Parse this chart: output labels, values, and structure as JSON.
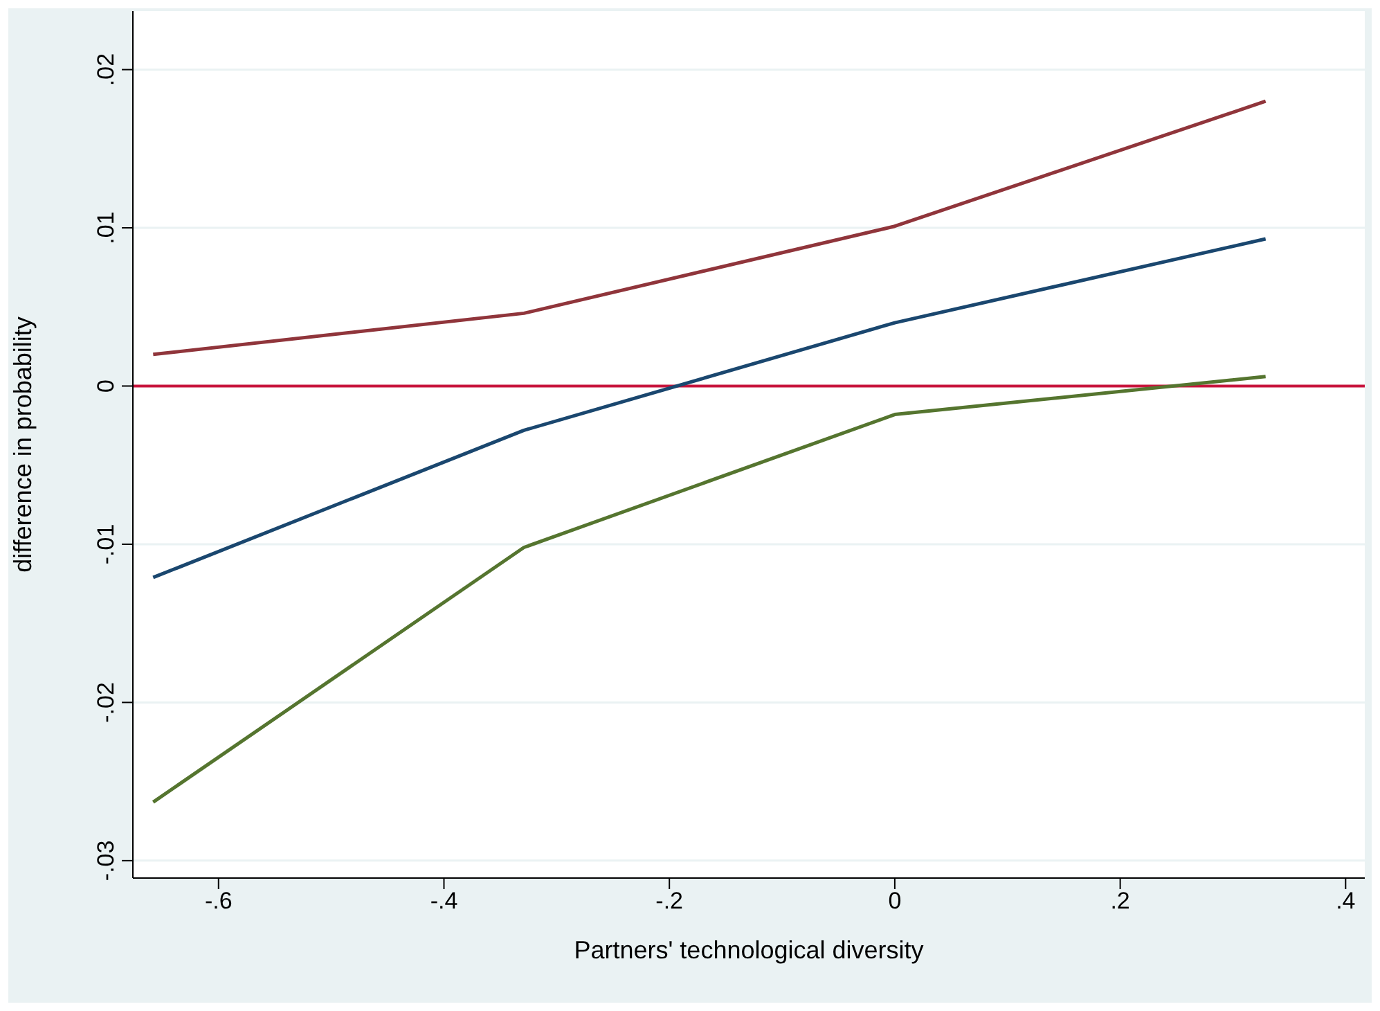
{
  "chart_data": {
    "type": "line",
    "xlabel": "Partners' technological diversity",
    "ylabel": "difference in probability",
    "x": [
      -0.658,
      -0.329,
      0,
      0.329
    ],
    "series": [
      {
        "color": "#90353b",
        "values": [
          0.002,
          0.0046,
          0.0101,
          0.018
        ]
      },
      {
        "color": "#1a476f",
        "values": [
          -0.0121,
          -0.0028,
          0.004,
          0.0093
        ]
      },
      {
        "color": "#55752f",
        "values": [
          -0.0263,
          -0.0102,
          -0.0018,
          0.0006
        ]
      }
    ],
    "xlim": [
      -0.676,
      0.417
    ],
    "xticks": [
      {
        "value": -0.6,
        "label": "-.6"
      },
      {
        "value": -0.4,
        "label": "-.4"
      },
      {
        "value": -0.2,
        "label": "-.2"
      },
      {
        "value": 0,
        "label": "0"
      },
      {
        "value": 0.2,
        "label": ".2"
      },
      {
        "value": 0.4,
        "label": ".4"
      }
    ],
    "ylim": [
      -0.0311,
      0.0237
    ],
    "yticks": [
      {
        "value": -0.03,
        "label": "-.03"
      },
      {
        "value": -0.02,
        "label": "-.02"
      },
      {
        "value": -0.01,
        "label": "-.01"
      },
      {
        "value": 0,
        "label": "0"
      },
      {
        "value": 0.01,
        "label": ".01"
      },
      {
        "value": 0.02,
        "label": ".02"
      }
    ],
    "ref_lines": [
      {
        "axis": "y",
        "value": 0,
        "color": "#c8143c"
      }
    ],
    "grid": "y",
    "marker": "none",
    "line_style": "solid",
    "legend": false
  }
}
